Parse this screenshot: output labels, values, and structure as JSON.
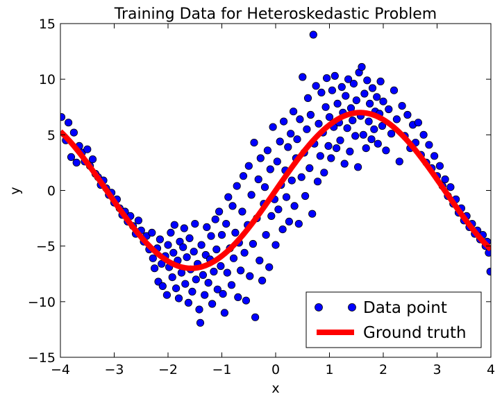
{
  "chart_data": {
    "type": "scatter",
    "title": "Training Data for Heteroskedastic Problem",
    "xlabel": "x",
    "ylabel": "y",
    "xlim": [
      -4,
      4
    ],
    "ylim": [
      -15,
      15
    ],
    "xticks": [
      -4,
      -3,
      -2,
      -1,
      0,
      1,
      2,
      3,
      4
    ],
    "yticks": [
      -15,
      -10,
      -5,
      0,
      5,
      10,
      15
    ],
    "xtick_labels": [
      "−4",
      "−3",
      "−2",
      "−1",
      "0",
      "1",
      "2",
      "3",
      "4"
    ],
    "ytick_labels": [
      "−15",
      "−10",
      "−5",
      "0",
      "5",
      "10",
      "15"
    ],
    "grid": false,
    "legend_position": "lower-right",
    "series": [
      {
        "name": "Data point",
        "kind": "scatter",
        "color": "#0000ff",
        "points": [
          [
            -3.98,
            6.6
          ],
          [
            -3.9,
            4.5
          ],
          [
            -3.85,
            6.1
          ],
          [
            -3.8,
            3.0
          ],
          [
            -3.75,
            5.2
          ],
          [
            -3.7,
            2.5
          ],
          [
            -3.65,
            4.0
          ],
          [
            -3.6,
            3.4
          ],
          [
            -3.55,
            2.6
          ],
          [
            -3.5,
            3.7
          ],
          [
            -3.45,
            2.2
          ],
          [
            -3.4,
            2.8
          ],
          [
            -3.35,
            1.5
          ],
          [
            -3.3,
            1.2
          ],
          [
            -3.25,
            0.5
          ],
          [
            -3.2,
            0.9
          ],
          [
            -3.15,
            0.2
          ],
          [
            -3.1,
            -0.4
          ],
          [
            -3.05,
            -0.2
          ],
          [
            -3.0,
            -1.1
          ],
          [
            -2.95,
            -0.8
          ],
          [
            -2.9,
            -1.6
          ],
          [
            -2.85,
            -2.2
          ],
          [
            -2.8,
            -1.9
          ],
          [
            -2.75,
            -2.8
          ],
          [
            -2.7,
            -2.3
          ],
          [
            -2.65,
            -3.2
          ],
          [
            -2.6,
            -3.9
          ],
          [
            -2.55,
            -2.7
          ],
          [
            -2.5,
            -3.6
          ],
          [
            -2.45,
            -4.6
          ],
          [
            -2.4,
            -4.1
          ],
          [
            -2.35,
            -5.3
          ],
          [
            -2.3,
            -3.8
          ],
          [
            -2.28,
            -6.1
          ],
          [
            -2.25,
            -7.0
          ],
          [
            -2.2,
            -5.2
          ],
          [
            -2.18,
            -8.2
          ],
          [
            -2.15,
            -4.4
          ],
          [
            -2.12,
            -6.6
          ],
          [
            -2.1,
            -8.6
          ],
          [
            -2.05,
            -5.9
          ],
          [
            -2.02,
            -9.4
          ],
          [
            -2.0,
            -4.9
          ],
          [
            -1.98,
            -6.9
          ],
          [
            -1.95,
            -3.8
          ],
          [
            -1.92,
            -7.8
          ],
          [
            -1.9,
            -5.6
          ],
          [
            -1.88,
            -3.1
          ],
          [
            -1.85,
            -8.8
          ],
          [
            -1.82,
            -6.3
          ],
          [
            -1.8,
            -9.7
          ],
          [
            -1.78,
            -4.6
          ],
          [
            -1.75,
            -7.4
          ],
          [
            -1.72,
            -5.1
          ],
          [
            -1.7,
            -3.4
          ],
          [
            -1.68,
            -8.4
          ],
          [
            -1.65,
            -6.0
          ],
          [
            -1.62,
            -10.1
          ],
          [
            -1.6,
            -4.3
          ],
          [
            -1.58,
            -7.1
          ],
          [
            -1.55,
            -9.1
          ],
          [
            -1.52,
            -5.5
          ],
          [
            -1.5,
            -3.0
          ],
          [
            -1.48,
            -8.0
          ],
          [
            -1.45,
            -6.6
          ],
          [
            -1.42,
            -10.7
          ],
          [
            -1.4,
            -11.9
          ],
          [
            -1.38,
            -4.9
          ],
          [
            -1.35,
            -7.6
          ],
          [
            -1.32,
            -9.4
          ],
          [
            -1.3,
            -5.8
          ],
          [
            -1.28,
            -3.3
          ],
          [
            -1.25,
            -8.3
          ],
          [
            -1.22,
            -6.2
          ],
          [
            -1.2,
            -4.1
          ],
          [
            -1.18,
            -10.2
          ],
          [
            -1.15,
            -7.3
          ],
          [
            -1.12,
            -2.6
          ],
          [
            -1.1,
            -5.3
          ],
          [
            -1.08,
            -8.9
          ],
          [
            -1.05,
            -1.9
          ],
          [
            -1.02,
            -6.8
          ],
          [
            -1.0,
            -4.0
          ],
          [
            -0.98,
            -9.3
          ],
          [
            -0.95,
            -11.0
          ],
          [
            -0.92,
            -3.0
          ],
          [
            -0.9,
            -7.4
          ],
          [
            -0.88,
            -0.6
          ],
          [
            -0.85,
            -5.2
          ],
          [
            -0.82,
            -8.5
          ],
          [
            -0.8,
            -1.4
          ],
          [
            -0.78,
            -6.1
          ],
          [
            -0.75,
            -3.8
          ],
          [
            -0.72,
            0.4
          ],
          [
            -0.7,
            -9.6
          ],
          [
            -0.68,
            -4.7
          ],
          [
            -0.65,
            -7.2
          ],
          [
            -0.62,
            -1.9
          ],
          [
            -0.6,
            1.3
          ],
          [
            -0.58,
            -5.6
          ],
          [
            -0.55,
            -9.9
          ],
          [
            -0.52,
            -3.1
          ],
          [
            -0.5,
            2.2
          ],
          [
            -0.48,
            -7.7
          ],
          [
            -0.45,
            -0.4
          ],
          [
            -0.42,
            -4.8
          ],
          [
            -0.4,
            4.3
          ],
          [
            -0.38,
            -11.4
          ],
          [
            -0.35,
            -2.5
          ],
          [
            -0.32,
            1.0
          ],
          [
            -0.3,
            -6.3
          ],
          [
            -0.28,
            2.9
          ],
          [
            -0.25,
            -8.1
          ],
          [
            -0.22,
            -1.2
          ],
          [
            -0.2,
            0.3
          ],
          [
            -0.18,
            -4.0
          ],
          [
            -0.15,
            3.6
          ],
          [
            -0.12,
            -6.9
          ],
          [
            -0.1,
            1.9
          ],
          [
            -0.08,
            -2.3
          ],
          [
            -0.05,
            5.7
          ],
          [
            -0.02,
            -0.8
          ],
          [
            0.0,
            -4.9
          ],
          [
            0.03,
            2.6
          ],
          [
            0.05,
            -1.7
          ],
          [
            0.08,
            4.4
          ],
          [
            0.1,
            0.5
          ],
          [
            0.13,
            -3.5
          ],
          [
            0.15,
            6.2
          ],
          [
            0.18,
            1.8
          ],
          [
            0.2,
            -0.6
          ],
          [
            0.23,
            3.9
          ],
          [
            0.25,
            -2.8
          ],
          [
            0.28,
            5.1
          ],
          [
            0.3,
            0.9
          ],
          [
            0.33,
            7.1
          ],
          [
            0.35,
            -1.4
          ],
          [
            0.38,
            2.9
          ],
          [
            0.4,
            4.6
          ],
          [
            0.43,
            -3.0
          ],
          [
            0.45,
            6.4
          ],
          [
            0.48,
            1.2
          ],
          [
            0.5,
            10.2
          ],
          [
            0.53,
            3.4
          ],
          [
            0.55,
            -0.5
          ],
          [
            0.58,
            5.5
          ],
          [
            0.6,
            8.3
          ],
          [
            0.63,
            2.0
          ],
          [
            0.65,
            6.8
          ],
          [
            0.68,
            -2.1
          ],
          [
            0.7,
            14.0
          ],
          [
            0.72,
            4.2
          ],
          [
            0.75,
            9.4
          ],
          [
            0.78,
            0.8
          ],
          [
            0.8,
            6.0
          ],
          [
            0.83,
            3.1
          ],
          [
            0.85,
            8.8
          ],
          [
            0.88,
            5.2
          ],
          [
            0.9,
            1.6
          ],
          [
            0.93,
            7.5
          ],
          [
            0.95,
            10.1
          ],
          [
            0.98,
            4.0
          ],
          [
            1.0,
            6.6
          ],
          [
            1.03,
            2.9
          ],
          [
            1.05,
            9.0
          ],
          [
            1.08,
            5.7
          ],
          [
            1.1,
            10.3
          ],
          [
            1.13,
            3.8
          ],
          [
            1.15,
            7.8
          ],
          [
            1.18,
            6.1
          ],
          [
            1.2,
            4.5
          ],
          [
            1.23,
            9.3
          ],
          [
            1.25,
            7.0
          ],
          [
            1.28,
            2.4
          ],
          [
            1.3,
            8.5
          ],
          [
            1.33,
            5.6
          ],
          [
            1.35,
            10.0
          ],
          [
            1.38,
            3.5
          ],
          [
            1.4,
            7.4
          ],
          [
            1.43,
            6.3
          ],
          [
            1.45,
            9.6
          ],
          [
            1.48,
            4.9
          ],
          [
            1.5,
            8.1
          ],
          [
            1.53,
            2.1
          ],
          [
            1.55,
            10.6
          ],
          [
            1.58,
            6.7
          ],
          [
            1.6,
            11.1
          ],
          [
            1.63,
            5.0
          ],
          [
            1.65,
            8.7
          ],
          [
            1.68,
            3.8
          ],
          [
            1.7,
            9.9
          ],
          [
            1.73,
            6.2
          ],
          [
            1.75,
            7.8
          ],
          [
            1.78,
            4.6
          ],
          [
            1.8,
            9.2
          ],
          [
            1.83,
            5.5
          ],
          [
            1.85,
            7.1
          ],
          [
            1.88,
            8.4
          ],
          [
            1.9,
            4.2
          ],
          [
            1.93,
            6.9
          ],
          [
            1.95,
            9.8
          ],
          [
            1.98,
            5.8
          ],
          [
            2.0,
            8.0
          ],
          [
            2.05,
            3.6
          ],
          [
            2.1,
            7.3
          ],
          [
            2.15,
            5.1
          ],
          [
            2.2,
            9.0
          ],
          [
            2.25,
            6.4
          ],
          [
            2.3,
            2.6
          ],
          [
            2.35,
            7.6
          ],
          [
            2.4,
            4.9
          ],
          [
            2.45,
            6.8
          ],
          [
            2.5,
            3.8
          ],
          [
            2.55,
            5.9
          ],
          [
            2.6,
            4.3
          ],
          [
            2.65,
            6.1
          ],
          [
            2.7,
            3.2
          ],
          [
            2.75,
            5.0
          ],
          [
            2.8,
            2.5
          ],
          [
            2.85,
            4.1
          ],
          [
            2.9,
            2.0
          ],
          [
            2.95,
            3.1
          ],
          [
            3.0,
            1.3
          ],
          [
            3.05,
            2.2
          ],
          [
            3.1,
            0.4
          ],
          [
            3.15,
            1.0
          ],
          [
            3.2,
            -0.5
          ],
          [
            3.25,
            0.3
          ],
          [
            3.3,
            -1.2
          ],
          [
            3.35,
            -0.8
          ],
          [
            3.4,
            -2.0
          ],
          [
            3.45,
            -1.6
          ],
          [
            3.5,
            -2.7
          ],
          [
            3.55,
            -2.3
          ],
          [
            3.6,
            -3.3
          ],
          [
            3.65,
            -3.0
          ],
          [
            3.7,
            -3.9
          ],
          [
            3.75,
            -3.6
          ],
          [
            3.8,
            -4.4
          ],
          [
            3.85,
            -4.0
          ],
          [
            3.9,
            -5.0
          ],
          [
            3.93,
            -4.6
          ],
          [
            3.96,
            -5.6
          ],
          [
            3.99,
            -7.3
          ]
        ]
      },
      {
        "name": "Ground truth",
        "kind": "line",
        "color": "#ff0000",
        "function": "7*sin(x)",
        "x_range": [
          -4,
          4
        ]
      }
    ]
  }
}
